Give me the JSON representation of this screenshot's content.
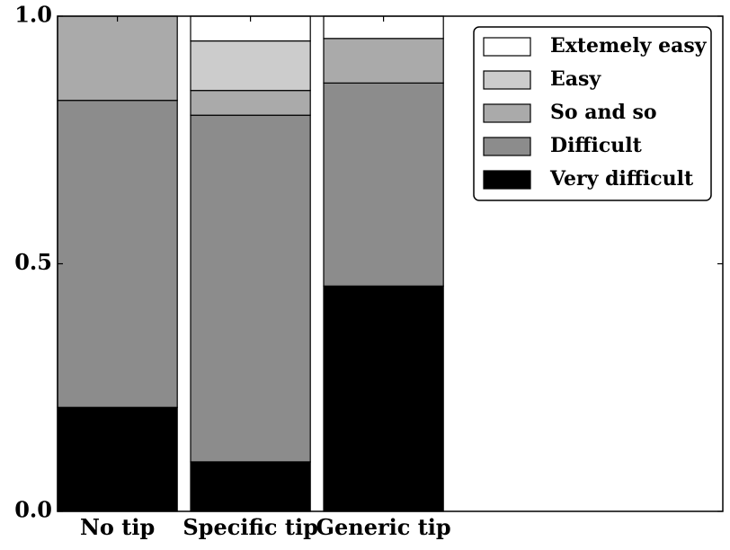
{
  "chart_data": {
    "type": "bar",
    "stacked": true,
    "categories": [
      "No tip",
      "Specific tip",
      "Generic tip"
    ],
    "series": [
      {
        "name": "Very difficult",
        "values": [
          0.21,
          0.1,
          0.455
        ],
        "color": "#000000"
      },
      {
        "name": "Difficult",
        "values": [
          0.62,
          0.7,
          0.41
        ],
        "color": "#8c8c8c"
      },
      {
        "name": "So and so",
        "values": [
          0.17,
          0.05,
          0.09
        ],
        "color": "#aaaaaa"
      },
      {
        "name": "Easy",
        "values": [
          0.0,
          0.1,
          0.0
        ],
        "color": "#cccccc"
      },
      {
        "name": "Extemely easy",
        "values": [
          0.0,
          0.05,
          0.045
        ],
        "color": "#ffffff"
      }
    ],
    "legend_order": [
      "Extemely easy",
      "Easy",
      "So and so",
      "Difficult",
      "Very difficult"
    ],
    "ylim": [
      0,
      1.0
    ],
    "yticks": [
      "0.0",
      "0.5",
      "1.0"
    ],
    "yticks_values": [
      0,
      0.5,
      1.0
    ],
    "xlim": [
      0,
      5.0
    ],
    "grid": false,
    "legend_position": "top-right",
    "title": "",
    "xlabel": "",
    "ylabel": ""
  }
}
